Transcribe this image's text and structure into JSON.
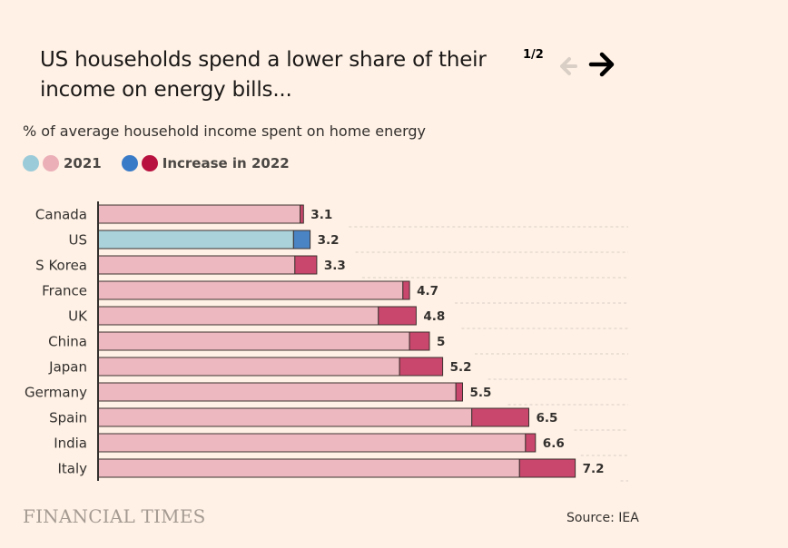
{
  "header": {
    "title": "US households spend a lower share of their income on energy bills...",
    "pager": "1/2"
  },
  "subtitle": "% of average household income spent on home energy",
  "legend": {
    "label_2021": "2021",
    "label_increase": "Increase in 2022"
  },
  "colors": {
    "base": "#EDB8BF",
    "increase": "#C9476C",
    "us_base": "#A9D2DA",
    "us_increase": "#4A84C4",
    "legend_us_2021": "#9BCBD9",
    "legend_pink_2021": "#EBAFB8",
    "legend_us_increase": "#3A7BC8",
    "legend_pink_increase": "#B8113F",
    "axis": "#33302E",
    "gridline": "#D9CEC6"
  },
  "chart_data": {
    "type": "bar",
    "orientation": "horizontal",
    "stacked": true,
    "title": "US households spend a lower share of their income on energy bills...",
    "subtitle": "% of average household income spent on home energy",
    "categories": [
      "Canada",
      "US",
      "S Korea",
      "France",
      "UK",
      "China",
      "Japan",
      "Germany",
      "Spain",
      "India",
      "Italy"
    ],
    "series": [
      {
        "name": "2021",
        "values": [
          3.05,
          2.95,
          2.97,
          4.6,
          4.23,
          4.7,
          4.55,
          5.4,
          5.64,
          6.45,
          6.36
        ]
      },
      {
        "name": "Increase in 2022",
        "values": [
          0.05,
          0.25,
          0.33,
          0.1,
          0.57,
          0.3,
          0.65,
          0.1,
          0.86,
          0.15,
          0.84
        ]
      }
    ],
    "totals": [
      3.1,
      3.2,
      3.3,
      4.7,
      4.8,
      5,
      5.2,
      5.5,
      6.5,
      6.6,
      7.2
    ],
    "total_labels": [
      "3.1",
      "3.2",
      "3.3",
      "4.7",
      "4.8",
      "5",
      "5.2",
      "5.5",
      "6.5",
      "6.6",
      "7.2"
    ],
    "highlight": "US",
    "xlim": [
      0,
      8
    ],
    "grid": true
  },
  "footer": {
    "brand": "FINANCIAL TIMES",
    "source": "Source: IEA"
  }
}
